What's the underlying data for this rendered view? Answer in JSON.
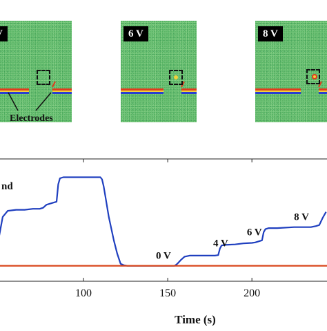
{
  "panels": [
    {
      "label": "V"
    },
    {
      "label": "6 V"
    },
    {
      "label": "8 V"
    }
  ],
  "annotations": {
    "electrodes": "Electrodes",
    "partial_legend": "nd"
  },
  "colors": {
    "panel_background": "#6fc277",
    "series_blue": "#1f3fbf",
    "series_red": "#d9461a"
  },
  "chart_data": {
    "type": "line",
    "xlabel": "Time (s)",
    "x_ticks": [
      100,
      150,
      200
    ],
    "xlim": [
      50,
      245
    ],
    "ylim": [
      -0.5,
      10.5
    ],
    "grid": false,
    "series": [
      {
        "color": "#1f3fbf",
        "x": [
          50,
          52,
          55,
          60,
          65,
          70,
          74,
          76,
          78,
          80,
          82,
          84,
          85,
          86,
          88,
          92,
          100,
          105,
          108,
          110,
          111,
          112,
          113,
          115,
          118,
          120,
          122,
          124,
          126,
          130,
          140,
          150,
          154,
          155,
          156,
          158,
          160,
          163,
          166,
          170,
          175,
          178,
          180,
          181,
          182,
          184,
          190,
          195,
          200,
          202,
          204,
          206,
          207,
          208,
          210,
          215,
          220,
          225,
          230,
          235,
          238,
          240,
          242,
          244
        ],
        "y": [
          3.0,
          4.8,
          5.4,
          5.5,
          5.5,
          5.6,
          5.6,
          5.7,
          6.0,
          6.1,
          6.2,
          6.3,
          8.0,
          8.6,
          8.7,
          8.7,
          8.7,
          8.7,
          8.7,
          8.7,
          8.5,
          7.8,
          6.8,
          4.8,
          2.5,
          1.2,
          0.2,
          0.05,
          0.0,
          0.0,
          0.0,
          0.0,
          0.0,
          0.1,
          0.25,
          0.6,
          0.9,
          1.0,
          1.0,
          1.0,
          1.0,
          1.0,
          1.05,
          1.7,
          2.0,
          2.05,
          2.1,
          2.2,
          2.25,
          2.3,
          2.4,
          2.5,
          3.3,
          3.6,
          3.7,
          3.7,
          3.75,
          3.8,
          3.8,
          3.8,
          3.9,
          4.0,
          4.7,
          5.3
        ]
      },
      {
        "color": "#d9461a",
        "x": [
          50,
          245
        ],
        "y": [
          0.0,
          0.0
        ]
      }
    ],
    "annotations": [
      {
        "text": "0 V",
        "x": 143,
        "y": 0.7
      },
      {
        "text": "4 V",
        "x": 177,
        "y": 1.9
      },
      {
        "text": "6 V",
        "x": 197,
        "y": 3.0
      },
      {
        "text": "8 V",
        "x": 225,
        "y": 4.5
      }
    ]
  }
}
